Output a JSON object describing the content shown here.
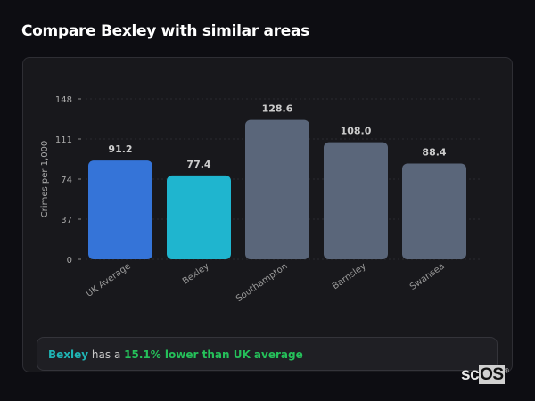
{
  "header": {
    "title": "Compare Bexley with similar areas"
  },
  "chart_data": {
    "type": "bar",
    "categories": [
      "UK Average",
      "Bexley",
      "Southampton",
      "Barnsley",
      "Swansea"
    ],
    "values": [
      91.2,
      77.4,
      128.6,
      108.0,
      88.4
    ],
    "value_labels": [
      "91.2",
      "77.4",
      "128.6",
      "108.0",
      "88.4"
    ],
    "colors": [
      "#3574d8",
      "#1fb5cf",
      "#5a667a",
      "#5a667a",
      "#5a667a"
    ],
    "ylabel": "Crimes per 1,000",
    "xlabel": "",
    "ylim": [
      0,
      148
    ],
    "yticks": [
      "0",
      "37",
      "74",
      "111",
      "148"
    ],
    "grid": true
  },
  "insight": {
    "area": "Bexley",
    "middle": " has a ",
    "comparison": "15.1% lower than UK average"
  },
  "logo": {
    "text": "scOS"
  }
}
